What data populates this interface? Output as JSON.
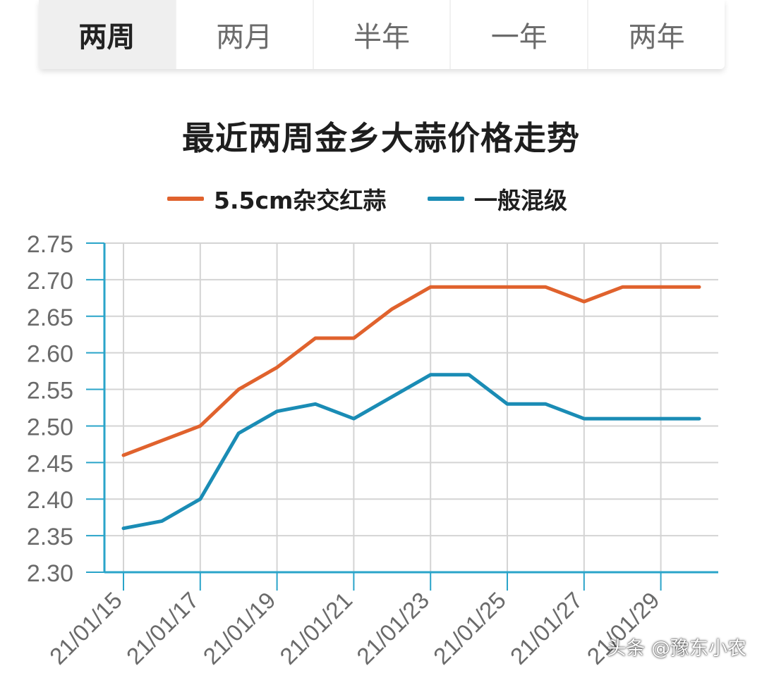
{
  "tabs": [
    {
      "label": "两周",
      "active": true
    },
    {
      "label": "两月",
      "active": false
    },
    {
      "label": "半年",
      "active": false
    },
    {
      "label": "一年",
      "active": false
    },
    {
      "label": "两年",
      "active": false
    }
  ],
  "watermark": "头条 @豫东小农",
  "colors": {
    "series_red": "#e0622d",
    "series_blue": "#1a8cb5",
    "axis": "#2aa4c9",
    "grid": "#d4d4d4"
  },
  "chart_data": {
    "type": "line",
    "title": "最近两周金乡大蒜价格走势",
    "grid": true,
    "legend_position": "top-center",
    "x": [
      "21/01/15",
      "21/01/16",
      "21/01/17",
      "21/01/18",
      "21/01/19",
      "21/01/20",
      "21/01/21",
      "21/01/22",
      "21/01/23",
      "21/01/24",
      "21/01/25",
      "21/01/26",
      "21/01/27",
      "21/01/28",
      "21/01/29",
      "21/01/30"
    ],
    "x_tick_labels": [
      "21/01/15",
      "21/01/17",
      "21/01/19",
      "21/01/21",
      "21/01/23",
      "21/01/25",
      "21/01/27",
      "21/01/29"
    ],
    "ylim": [
      2.3,
      2.75
    ],
    "y_ticks": [
      "2.75",
      "2.70",
      "2.65",
      "2.60",
      "2.55",
      "2.50",
      "2.45",
      "2.40",
      "2.35",
      "2.30"
    ],
    "series": [
      {
        "name": "5.5cm杂交红蒜",
        "color": "#e0622d",
        "values": [
          2.46,
          2.48,
          2.5,
          2.55,
          2.58,
          2.62,
          2.62,
          2.66,
          2.69,
          2.69,
          2.69,
          2.69,
          2.67,
          2.69,
          2.69,
          2.69
        ]
      },
      {
        "name": "一般混级",
        "color": "#1a8cb5",
        "values": [
          2.36,
          2.37,
          2.4,
          2.49,
          2.52,
          2.53,
          2.51,
          2.54,
          2.57,
          2.57,
          2.53,
          2.53,
          2.51,
          2.51,
          2.51,
          2.51
        ]
      }
    ]
  }
}
